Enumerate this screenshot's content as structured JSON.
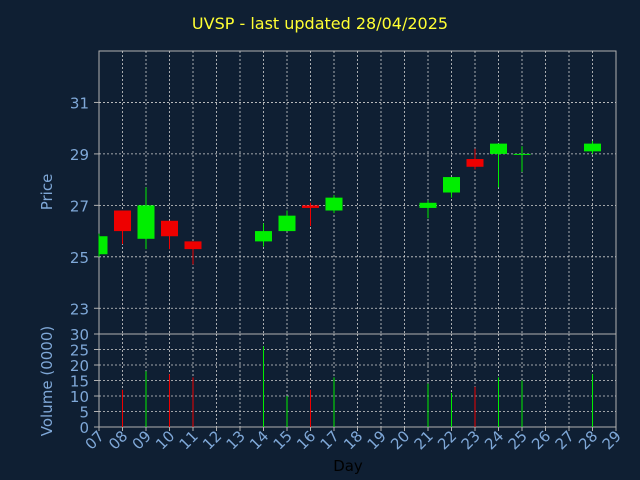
{
  "chart_data": {
    "type": "candlestick",
    "title": "UVSP - last updated 28/04/2025",
    "price_axis": {
      "label": "Price",
      "range": [
        22,
        33
      ],
      "ticks": [
        23,
        25,
        27,
        29,
        31
      ]
    },
    "volume_axis": {
      "label": "Volume (0000)",
      "range": [
        0,
        30
      ],
      "ticks": [
        0,
        5,
        10,
        15,
        20,
        25,
        30
      ]
    },
    "x_axis": {
      "label": "Day",
      "ticks": [
        "07",
        "08",
        "09",
        "10",
        "11",
        "12",
        "13",
        "14",
        "15",
        "16",
        "17",
        "18",
        "19",
        "20",
        "21",
        "22",
        "23",
        "24",
        "25",
        "26",
        "27",
        "28",
        "29"
      ]
    },
    "colors": {
      "up": "#00ee00",
      "down": "#ee0000",
      "background": "#0f1f33",
      "grid": "#d0d0d0",
      "axis_text": "#7fa8d8",
      "title": "#ffff33"
    },
    "candles": [
      {
        "day": "07",
        "open": 25.1,
        "high": 25.9,
        "low": 25.0,
        "close": 25.8,
        "volume": 0
      },
      {
        "day": "08",
        "open": 26.8,
        "high": 26.8,
        "low": 25.5,
        "close": 26.0,
        "volume": 12
      },
      {
        "day": "09",
        "open": 25.7,
        "high": 27.7,
        "low": 25.3,
        "close": 27.0,
        "volume": 18
      },
      {
        "day": "10",
        "open": 26.4,
        "high": 26.4,
        "low": 25.3,
        "close": 25.8,
        "volume": 17
      },
      {
        "day": "11",
        "open": 25.6,
        "high": 25.6,
        "low": 24.7,
        "close": 25.3,
        "volume": 16
      },
      {
        "day": "14",
        "open": 25.6,
        "high": 26.3,
        "low": 25.4,
        "close": 26.0,
        "volume": 26
      },
      {
        "day": "15",
        "open": 26.0,
        "high": 26.8,
        "low": 26.0,
        "close": 26.6,
        "volume": 10
      },
      {
        "day": "16",
        "open": 27.0,
        "high": 27.1,
        "low": 26.2,
        "close": 26.9,
        "volume": 12
      },
      {
        "day": "17",
        "open": 26.8,
        "high": 27.4,
        "low": 26.7,
        "close": 27.3,
        "volume": 16
      },
      {
        "day": "21",
        "open": 26.9,
        "high": 27.2,
        "low": 26.5,
        "close": 27.1,
        "volume": 14
      },
      {
        "day": "22",
        "open": 27.5,
        "high": 28.1,
        "low": 27.3,
        "close": 28.1,
        "volume": 11
      },
      {
        "day": "23",
        "open": 28.8,
        "high": 29.2,
        "low": 28.4,
        "close": 28.5,
        "volume": 13
      },
      {
        "day": "24",
        "open": 29.0,
        "high": 29.4,
        "low": 27.7,
        "close": 29.4,
        "volume": 16
      },
      {
        "day": "25",
        "open": 29.0,
        "high": 29.3,
        "low": 28.3,
        "close": 29.0,
        "volume": 15
      },
      {
        "day": "28",
        "open": 29.1,
        "high": 29.5,
        "low": 29.0,
        "close": 29.4,
        "volume": 17
      }
    ]
  }
}
